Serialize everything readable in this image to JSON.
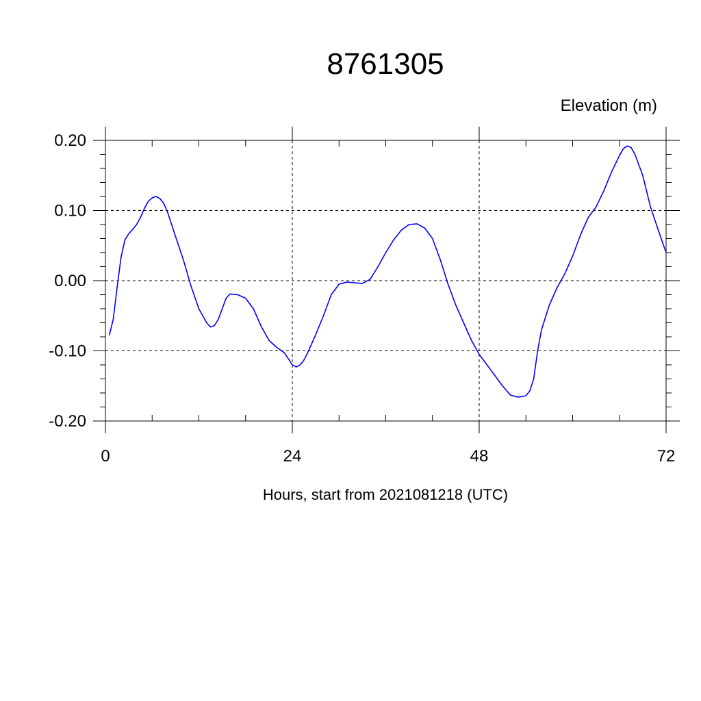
{
  "chart_data": {
    "type": "line",
    "title": "8761305",
    "ylabel": "Elevation (m)",
    "xlabel": "Hours, start from 2021081218 (UTC)",
    "xlim": [
      0,
      72
    ],
    "ylim": [
      -0.2,
      0.2
    ],
    "x_ticks": [
      0,
      24,
      48,
      72
    ],
    "x_tick_labels": [
      "0",
      "24",
      "48",
      "72"
    ],
    "y_ticks": [
      -0.2,
      -0.1,
      0.0,
      0.1,
      0.2
    ],
    "y_tick_labels": [
      "-0.20",
      "-0.10",
      "0.00",
      "0.10",
      "0.20"
    ],
    "grid": true,
    "grid_style": "dashed",
    "line_color": "#0000ff",
    "series": [
      {
        "x": [
          0.5,
          1,
          1.5,
          2,
          2.5,
          3,
          3.5,
          4,
          4.5,
          5,
          5.5,
          6,
          6.5,
          7,
          7.5,
          8,
          8.5,
          9,
          10,
          11,
          12,
          13,
          13.5,
          14,
          14.5,
          15,
          15.5,
          16,
          17,
          18,
          19,
          20,
          21,
          22,
          23,
          24,
          24.5,
          25,
          25.5,
          26,
          27,
          28,
          29,
          30,
          31,
          32,
          33,
          34,
          35,
          36,
          37,
          38,
          39,
          40,
          41,
          42,
          43,
          44,
          45,
          46,
          47,
          48,
          49,
          50,
          51,
          52,
          53,
          54,
          54.5,
          55,
          55.5,
          56,
          57,
          58,
          59,
          60,
          61,
          62,
          63,
          64,
          65,
          66,
          66.5,
          67,
          67.5,
          68,
          69,
          70,
          71,
          72
        ],
        "y": [
          -0.078,
          -0.055,
          -0.01,
          0.033,
          0.058,
          0.067,
          0.073,
          0.08,
          0.09,
          0.103,
          0.113,
          0.118,
          0.12,
          0.117,
          0.11,
          0.097,
          0.08,
          0.063,
          0.03,
          -0.008,
          -0.04,
          -0.06,
          -0.066,
          -0.064,
          -0.055,
          -0.04,
          -0.025,
          -0.019,
          -0.02,
          -0.025,
          -0.04,
          -0.065,
          -0.085,
          -0.095,
          -0.103,
          -0.12,
          -0.123,
          -0.12,
          -0.113,
          -0.102,
          -0.077,
          -0.05,
          -0.02,
          -0.005,
          -0.002,
          -0.003,
          -0.004,
          0.002,
          0.02,
          0.04,
          0.058,
          0.072,
          0.08,
          0.081,
          0.075,
          0.06,
          0.03,
          -0.005,
          -0.035,
          -0.06,
          -0.085,
          -0.105,
          -0.12,
          -0.135,
          -0.15,
          -0.163,
          -0.166,
          -0.164,
          -0.157,
          -0.14,
          -0.1,
          -0.07,
          -0.035,
          -0.01,
          0.01,
          0.035,
          0.065,
          0.09,
          0.105,
          0.128,
          0.155,
          0.178,
          0.188,
          0.192,
          0.19,
          0.18,
          0.15,
          0.105,
          0.072,
          0.04
        ]
      }
    ]
  }
}
